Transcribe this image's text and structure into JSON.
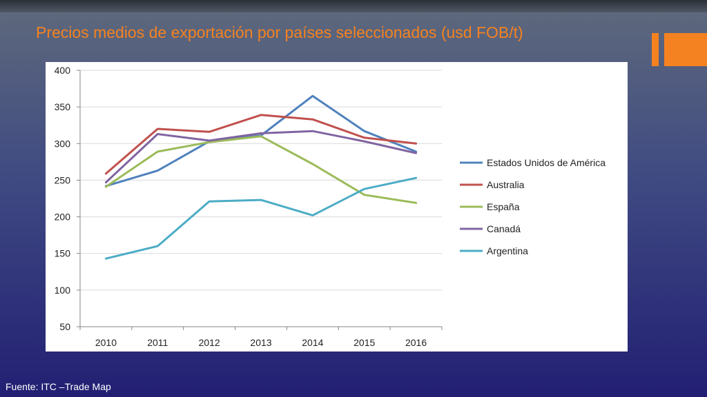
{
  "slide": {
    "title": "Precios medios de exportación por países seleccionados (usd FOB/t)",
    "footer": "Fuente: ITC –Trade Map",
    "accent_color": "#f58220"
  },
  "chart_data": {
    "type": "line",
    "x": [
      "2010",
      "2011",
      "2012",
      "2013",
      "2014",
      "2015",
      "2016"
    ],
    "ylim": [
      50,
      400
    ],
    "yticks": [
      50,
      100,
      150,
      200,
      250,
      300,
      350,
      400
    ],
    "grid": true,
    "legend_position": "right",
    "series": [
      {
        "name": "Estados Unidos de América",
        "color": "#4f81bd",
        "values": [
          242,
          263,
          303,
          311,
          365,
          317,
          289
        ]
      },
      {
        "name": "Australia",
        "color": "#c0504d",
        "values": [
          259,
          320,
          316,
          339,
          333,
          308,
          300
        ]
      },
      {
        "name": "España",
        "color": "#9bbb59",
        "values": [
          241,
          289,
          302,
          310,
          272,
          230,
          219
        ]
      },
      {
        "name": "Canadá",
        "color": "#8064a2",
        "values": [
          247,
          313,
          304,
          314,
          317,
          303,
          287
        ]
      },
      {
        "name": "Argentina",
        "color": "#4bacc6",
        "values": [
          143,
          160,
          221,
          223,
          202,
          238,
          253
        ]
      }
    ]
  }
}
